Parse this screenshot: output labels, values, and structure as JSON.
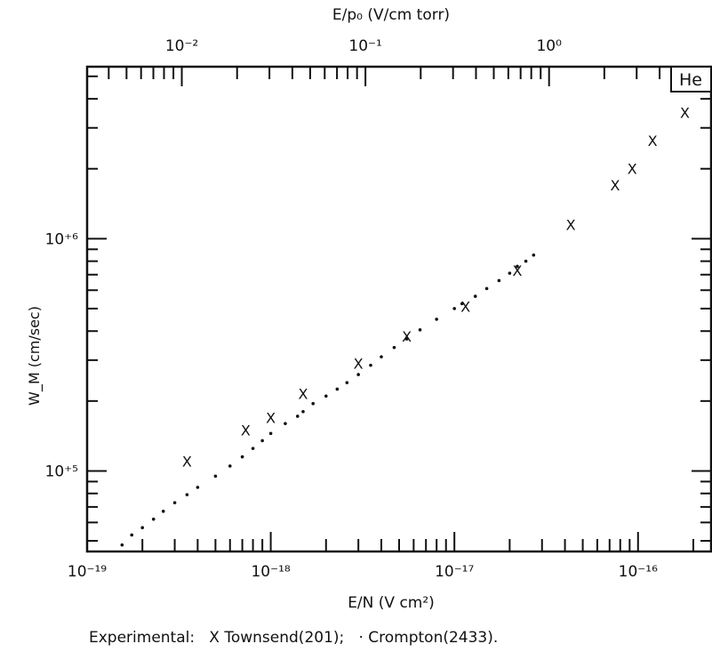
{
  "chart_data": {
    "type": "scatter",
    "title": "",
    "xlabel": "E/N (V cm²)",
    "x2label": "E/p₀ (V/cm torr)",
    "ylabel": "W_M (cm/sec)",
    "xscale": "log",
    "yscale": "log",
    "xlim": [
      1e-19,
      2.5e-16
    ],
    "ylim": [
      45000,
      5500000
    ],
    "x2lim": [
      0.00305,
      7.63
    ],
    "x_ticks": [
      "10⁻¹⁹",
      "10⁻¹⁸",
      "10⁻¹⁷",
      "10⁻¹⁶"
    ],
    "x2_ticks": [
      "10⁻²",
      "10⁻¹",
      "10⁰"
    ],
    "y_ticks": [
      "10⁺⁵",
      "10⁺⁶"
    ],
    "gas_label": "He",
    "caption": "Experimental:   X Townsend(201);   · Crompton(2433).",
    "series": [
      {
        "name": "Townsend(201)",
        "marker": "X",
        "x": [
          3.5e-19,
          7.3e-19,
          1e-18,
          1.5e-18,
          3e-18,
          5.5e-18,
          1.15e-17,
          2.2e-17,
          4.3e-17,
          7.5e-17,
          9.3e-17,
          1.2e-16,
          1.8e-16
        ],
        "y": [
          110000,
          150000,
          170000,
          215000,
          290000,
          380000,
          510000,
          730000,
          1150000,
          1700000,
          2000000,
          2650000,
          3500000
        ]
      },
      {
        "name": "Crompton(2433)",
        "marker": "·",
        "x": [
          1.55e-19,
          1.75e-19,
          2e-19,
          2.3e-19,
          2.6e-19,
          3e-19,
          3.5e-19,
          4e-19,
          5e-19,
          6e-19,
          7e-19,
          8e-19,
          9e-19,
          1e-18,
          1.2e-18,
          1.4e-18,
          1.5e-18,
          1.7e-18,
          2e-18,
          2.3e-18,
          2.6e-18,
          3e-18,
          3.5e-18,
          4e-18,
          4.7e-18,
          5.5e-18,
          6.5e-18,
          8e-18,
          1e-17,
          1.1e-17,
          1.3e-17,
          1.5e-17,
          1.75e-17,
          2e-17,
          2.2e-17,
          2.45e-17,
          2.7e-17
        ],
        "y": [
          48000,
          53000,
          57000,
          62000,
          67000,
          73000,
          79000,
          85000,
          95000,
          105000,
          115000,
          125000,
          135000,
          145000,
          160000,
          172000,
          180000,
          195000,
          210000,
          225000,
          240000,
          260000,
          285000,
          310000,
          340000,
          370000,
          405000,
          450000,
          500000,
          525000,
          565000,
          610000,
          660000,
          710000,
          760000,
          800000,
          850000
        ]
      }
    ]
  }
}
